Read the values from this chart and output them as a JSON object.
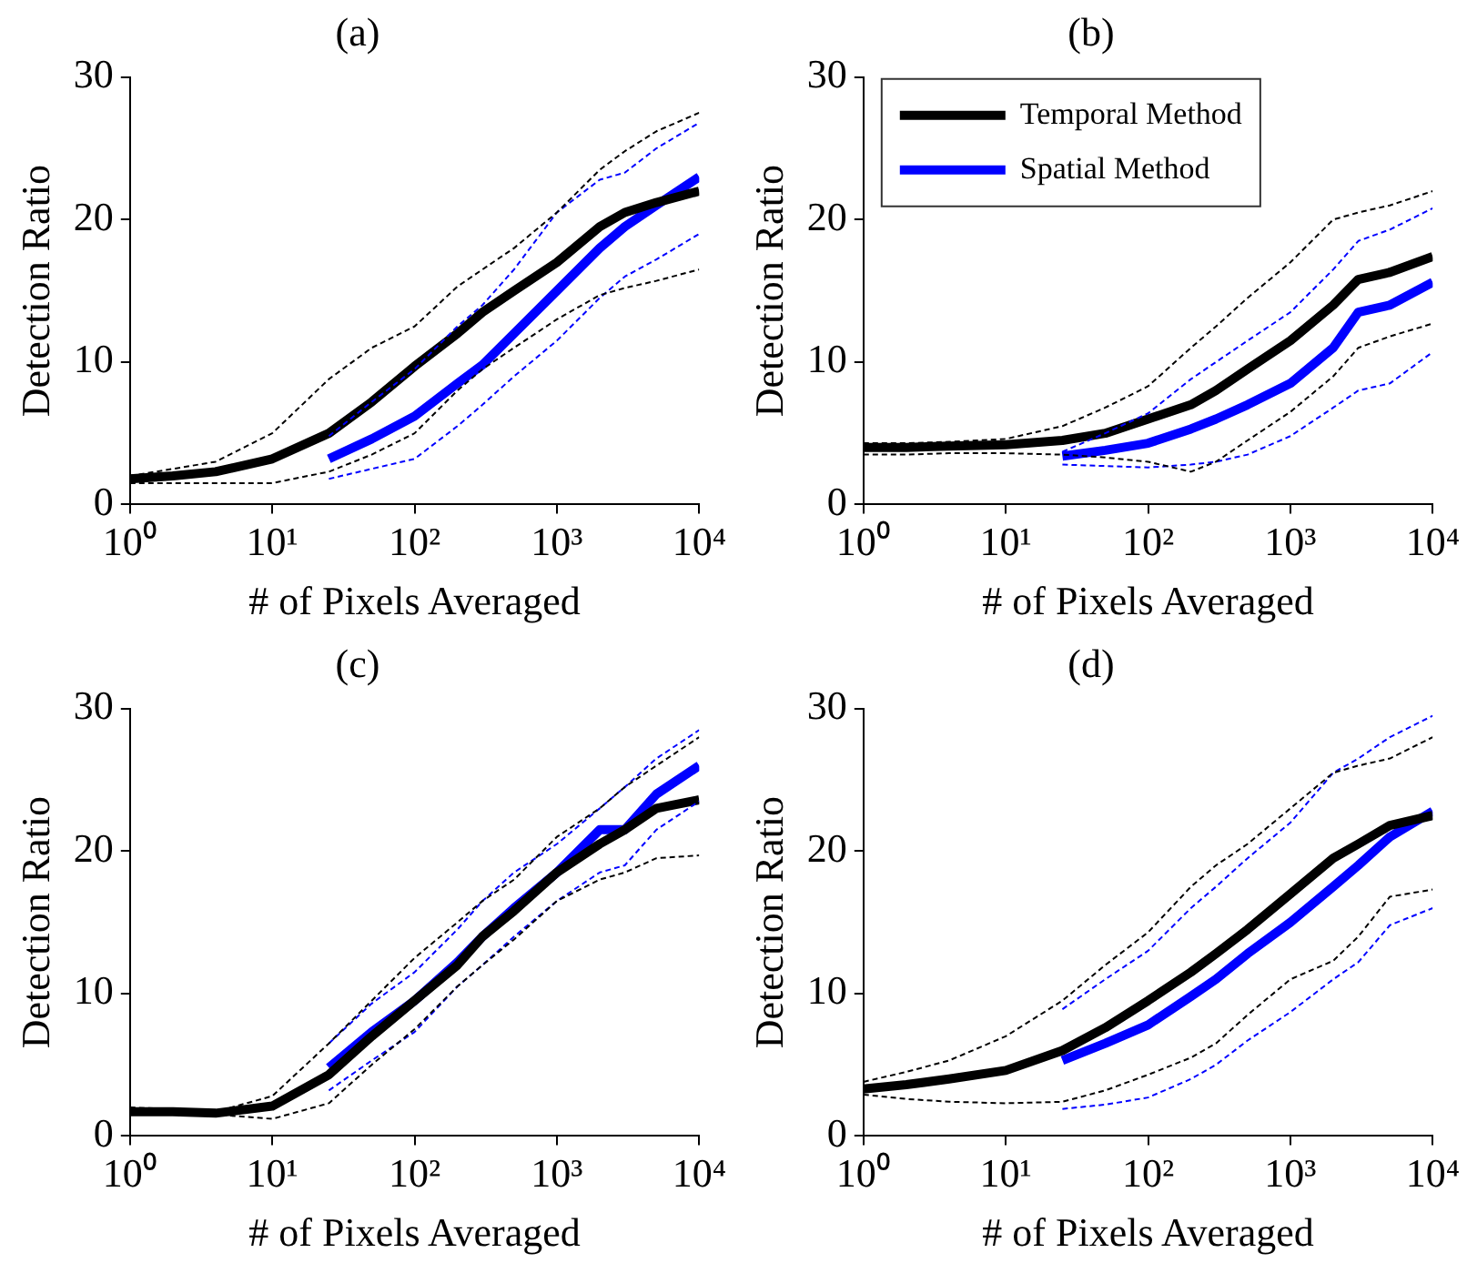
{
  "chart_data": [
    {
      "type": "line",
      "title": "(a)",
      "xlabel": "# of Pixels Averaged",
      "ylabel": "Detection Ratio",
      "log": "x",
      "marker": "none",
      "legend": false,
      "xlim": [
        1,
        10000
      ],
      "xticks": [
        {
          "value": 1,
          "label": "10⁰"
        },
        {
          "value": 10,
          "label": "10¹"
        },
        {
          "value": 100,
          "label": "10²"
        },
        {
          "value": 1000,
          "label": "10³"
        },
        {
          "value": 10000,
          "label": "10⁴"
        }
      ],
      "ylim": [
        0,
        30
      ],
      "yticks": [
        0,
        10,
        20,
        30
      ],
      "series": [
        {
          "color": "#000000",
          "line_style": "dashed",
          "x": [
            1,
            2,
            4,
            10,
            25,
            50,
            100,
            200,
            300,
            500,
            1000,
            2000,
            3000,
            5000,
            10000
          ],
          "values": [
            1.5,
            1.5,
            1.5,
            1.5,
            2.3,
            3.5,
            5,
            8,
            9.5,
            11,
            13,
            14.7,
            15.2,
            15.7,
            16.5
          ]
        },
        {
          "color": "#000000",
          "line_style": "dashed",
          "x": [
            1,
            2,
            4,
            10,
            25,
            50,
            100,
            200,
            300,
            500,
            1000,
            2000,
            3000,
            5000,
            10000
          ],
          "values": [
            2,
            2.5,
            3,
            5,
            8.8,
            11,
            12.5,
            15.3,
            16.5,
            18,
            20.5,
            23.5,
            24.8,
            26.2,
            27.5
          ]
        },
        {
          "color": "#0000ff",
          "line_style": "dashed",
          "x": [
            25,
            50,
            100,
            200,
            300,
            500,
            1000,
            2000,
            3000,
            5000,
            10000
          ],
          "values": [
            1.8,
            2.5,
            3.2,
            5.5,
            7,
            9,
            11.5,
            14.5,
            16,
            17.2,
            19
          ]
        },
        {
          "color": "#0000ff",
          "line_style": "dashed",
          "x": [
            25,
            50,
            100,
            200,
            300,
            500,
            1000,
            2000,
            3000,
            5000,
            10000
          ],
          "values": [
            4.8,
            7.2,
            9.5,
            12.5,
            14,
            16.5,
            20.5,
            22.8,
            23.3,
            25,
            26.8
          ]
        },
        {
          "color": "#000000",
          "line_style": "solid",
          "x": [
            1,
            2,
            4,
            10,
            25,
            50,
            100,
            200,
            300,
            500,
            1000,
            2000,
            3000,
            5000,
            10000
          ],
          "values": [
            1.8,
            2.0,
            2.3,
            3.2,
            5.0,
            7.2,
            9.7,
            12,
            13.5,
            15,
            17,
            19.5,
            20.5,
            21.2,
            22
          ]
        },
        {
          "color": "#0000ff",
          "line_style": "solid",
          "x": [
            25,
            50,
            100,
            200,
            300,
            500,
            1000,
            2000,
            3000,
            5000,
            10000
          ],
          "values": [
            3.2,
            4.6,
            6.2,
            8.5,
            9.8,
            12,
            15,
            18,
            19.5,
            21,
            23
          ]
        }
      ]
    },
    {
      "type": "line",
      "title": "(b)",
      "xlabel": "# of Pixels Averaged",
      "ylabel": "Detection Ratio",
      "log": "x",
      "marker": "none",
      "legend": "top left",
      "xlim": [
        1,
        10000
      ],
      "xticks": [
        {
          "value": 1,
          "label": "10⁰"
        },
        {
          "value": 10,
          "label": "10¹"
        },
        {
          "value": 100,
          "label": "10²"
        },
        {
          "value": 1000,
          "label": "10³"
        },
        {
          "value": 10000,
          "label": "10⁴"
        }
      ],
      "ylim": [
        0,
        30
      ],
      "yticks": [
        0,
        10,
        20,
        30
      ],
      "series": [
        {
          "color": "#000000",
          "line_style": "dashed",
          "x": [
            1,
            2,
            4,
            10,
            25,
            50,
            100,
            200,
            300,
            500,
            1000,
            2000,
            3000,
            5000,
            10000
          ],
          "values": [
            3.5,
            3.5,
            3.6,
            3.6,
            3.5,
            3.3,
            3,
            2.3,
            3,
            4.5,
            6.5,
            9,
            11,
            11.8,
            12.7
          ]
        },
        {
          "color": "#000000",
          "line_style": "dashed",
          "x": [
            1,
            2,
            4,
            10,
            25,
            50,
            100,
            200,
            300,
            500,
            1000,
            2000,
            3000,
            5000,
            10000
          ],
          "values": [
            4.3,
            4.3,
            4.4,
            4.6,
            5.5,
            6.8,
            8.3,
            11,
            12.5,
            14.5,
            17,
            20,
            20.5,
            21,
            22
          ]
        },
        {
          "color": "#0000ff",
          "line_style": "dashed",
          "x": [
            25,
            50,
            100,
            200,
            300,
            500,
            1000,
            2000,
            3000,
            5000,
            10000
          ],
          "values": [
            2.8,
            2.7,
            2.6,
            2.8,
            3,
            3.5,
            4.8,
            6.8,
            8,
            8.5,
            10.7
          ]
        },
        {
          "color": "#0000ff",
          "line_style": "dashed",
          "x": [
            25,
            50,
            100,
            200,
            300,
            500,
            1000,
            2000,
            3000,
            5000,
            10000
          ],
          "values": [
            3.7,
            5,
            6.4,
            8.8,
            10,
            11.5,
            13.5,
            16.5,
            18.5,
            19.3,
            20.8
          ]
        },
        {
          "name": "Temporal Method",
          "color": "#000000",
          "line_style": "solid",
          "x": [
            1,
            2,
            4,
            10,
            25,
            50,
            100,
            200,
            300,
            500,
            1000,
            2000,
            3000,
            5000,
            10000
          ],
          "values": [
            4,
            4,
            4.1,
            4.2,
            4.5,
            5,
            6,
            7,
            8,
            9.5,
            11.5,
            14,
            15.8,
            16.3,
            17.4
          ]
        },
        {
          "name": "Spatial Method",
          "color": "#0000ff",
          "line_style": "solid",
          "x": [
            25,
            50,
            100,
            200,
            300,
            500,
            1000,
            2000,
            3000,
            5000,
            10000
          ],
          "values": [
            3.4,
            3.8,
            4.3,
            5.3,
            6,
            7,
            8.5,
            11,
            13.5,
            14,
            15.6
          ]
        }
      ]
    },
    {
      "type": "line",
      "title": "(c)",
      "xlabel": "# of Pixels Averaged",
      "ylabel": "Detection Ratio",
      "log": "x",
      "marker": "none",
      "legend": false,
      "xlim": [
        1,
        10000
      ],
      "xticks": [
        {
          "value": 1,
          "label": "10⁰"
        },
        {
          "value": 10,
          "label": "10¹"
        },
        {
          "value": 100,
          "label": "10²"
        },
        {
          "value": 1000,
          "label": "10³"
        },
        {
          "value": 10000,
          "label": "10⁴"
        }
      ],
      "ylim": [
        0,
        30
      ],
      "yticks": [
        0,
        10,
        20,
        30
      ],
      "series": [
        {
          "color": "#000000",
          "line_style": "dashed",
          "x": [
            1,
            2,
            4,
            10,
            25,
            50,
            100,
            200,
            300,
            500,
            1000,
            2000,
            3000,
            5000,
            10000
          ],
          "values": [
            1.5,
            1.5,
            1.5,
            1.2,
            2.3,
            5,
            7.5,
            10.5,
            12,
            13.8,
            16.5,
            18,
            18.5,
            19.5,
            19.7
          ]
        },
        {
          "color": "#000000",
          "line_style": "dashed",
          "x": [
            1,
            2,
            4,
            10,
            25,
            50,
            100,
            200,
            300,
            500,
            1000,
            2000,
            3000,
            5000,
            10000
          ],
          "values": [
            2,
            1.9,
            1.7,
            2.8,
            6.5,
            9.5,
            12.5,
            15,
            16.5,
            18,
            21,
            23,
            24.5,
            26,
            28
          ]
        },
        {
          "color": "#0000ff",
          "line_style": "dashed",
          "x": [
            25,
            50,
            100,
            200,
            300,
            500,
            1000,
            2000,
            3000,
            5000,
            10000
          ],
          "values": [
            3.2,
            5.3,
            7.3,
            10.5,
            12,
            14,
            16.5,
            18.5,
            19,
            21.5,
            23.5
          ]
        },
        {
          "color": "#0000ff",
          "line_style": "dashed",
          "x": [
            25,
            50,
            100,
            200,
            300,
            500,
            1000,
            2000,
            3000,
            5000,
            10000
          ],
          "values": [
            6.5,
            9.3,
            11.5,
            14.5,
            16.5,
            18.5,
            20.5,
            23,
            24.5,
            26.5,
            28.5
          ]
        },
        {
          "color": "#000000",
          "line_style": "solid",
          "x": [
            1,
            2,
            4,
            10,
            25,
            50,
            100,
            200,
            300,
            500,
            1000,
            2000,
            3000,
            5000,
            10000
          ],
          "values": [
            1.7,
            1.7,
            1.6,
            2.1,
            4.3,
            7,
            9.5,
            12,
            14,
            15.8,
            18.5,
            20.5,
            21.5,
            23,
            23.6
          ]
        },
        {
          "color": "#0000ff",
          "line_style": "solid",
          "x": [
            25,
            50,
            100,
            200,
            300,
            500,
            1000,
            2000,
            3000,
            5000,
            10000
          ],
          "values": [
            4.8,
            7.3,
            9.5,
            12.2,
            14,
            16,
            18.5,
            21.5,
            21.5,
            24,
            26
          ]
        }
      ]
    },
    {
      "type": "line",
      "title": "(d)",
      "xlabel": "# of Pixels Averaged",
      "ylabel": "Detection Ratio",
      "log": "x",
      "marker": "none",
      "legend": false,
      "xlim": [
        1,
        10000
      ],
      "xticks": [
        {
          "value": 1,
          "label": "10⁰"
        },
        {
          "value": 10,
          "label": "10¹"
        },
        {
          "value": 100,
          "label": "10²"
        },
        {
          "value": 1000,
          "label": "10³"
        },
        {
          "value": 10000,
          "label": "10⁴"
        }
      ],
      "ylim": [
        0,
        30
      ],
      "yticks": [
        0,
        10,
        20,
        30
      ],
      "series": [
        {
          "color": "#000000",
          "line_style": "dashed",
          "x": [
            1,
            2,
            4,
            10,
            25,
            50,
            100,
            200,
            300,
            500,
            1000,
            2000,
            3000,
            5000,
            10000
          ],
          "values": [
            2.9,
            2.6,
            2.4,
            2.3,
            2.4,
            3.2,
            4.3,
            5.5,
            6.5,
            8.5,
            11,
            12.3,
            14,
            16.8,
            17.3
          ]
        },
        {
          "color": "#000000",
          "line_style": "dashed",
          "x": [
            1,
            2,
            4,
            10,
            25,
            50,
            100,
            200,
            300,
            500,
            1000,
            2000,
            3000,
            5000,
            10000
          ],
          "values": [
            3.8,
            4.5,
            5.3,
            7,
            9.5,
            12,
            14.3,
            17.5,
            19,
            20.5,
            23,
            25.5,
            26,
            26.5,
            28
          ]
        },
        {
          "color": "#0000ff",
          "line_style": "dashed",
          "x": [
            25,
            50,
            100,
            200,
            300,
            500,
            1000,
            2000,
            3000,
            5000,
            10000
          ],
          "values": [
            1.9,
            2.2,
            2.7,
            4,
            5,
            6.7,
            8.7,
            11,
            12.2,
            14.8,
            16
          ]
        },
        {
          "color": "#0000ff",
          "line_style": "dashed",
          "x": [
            25,
            50,
            100,
            200,
            300,
            500,
            1000,
            2000,
            3000,
            5000,
            10000
          ],
          "values": [
            8.9,
            11,
            13,
            16,
            17.5,
            19.5,
            22,
            25.5,
            26.5,
            28,
            29.5
          ]
        },
        {
          "color": "#000000",
          "line_style": "solid",
          "x": [
            1,
            2,
            4,
            10,
            25,
            50,
            100,
            200,
            300,
            500,
            1000,
            2000,
            3000,
            5000,
            10000
          ],
          "values": [
            3.3,
            3.6,
            4,
            4.6,
            6,
            7.6,
            9.5,
            11.5,
            12.8,
            14.5,
            17,
            19.5,
            20.5,
            21.8,
            22.5
          ]
        },
        {
          "color": "#0000ff",
          "line_style": "solid",
          "x": [
            25,
            50,
            100,
            200,
            300,
            500,
            1000,
            2000,
            3000,
            5000,
            10000
          ],
          "values": [
            5.3,
            6.5,
            7.8,
            9.8,
            11,
            12.8,
            15,
            17.5,
            19,
            21,
            22.8
          ]
        }
      ]
    }
  ]
}
